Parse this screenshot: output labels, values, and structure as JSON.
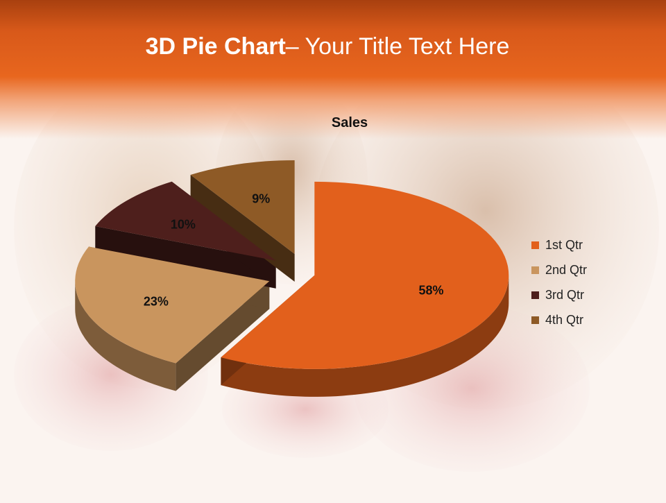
{
  "slide": {
    "title_bold": "3D Pie Chart",
    "title_rest": "– Your Title Text Here"
  },
  "chart_data": {
    "type": "pie",
    "title": "Sales",
    "categories": [
      "1st Qtr",
      "2nd Qtr",
      "3rd Qtr",
      "4th Qtr"
    ],
    "values": [
      58,
      23,
      10,
      9
    ],
    "data_labels": [
      "58%",
      "23%",
      "10%",
      "9%"
    ],
    "colors": [
      "#e2601c",
      "#c9955e",
      "#4e1f1c",
      "#8e5a26"
    ],
    "legend_position": "right",
    "style": "3d-exploded"
  }
}
